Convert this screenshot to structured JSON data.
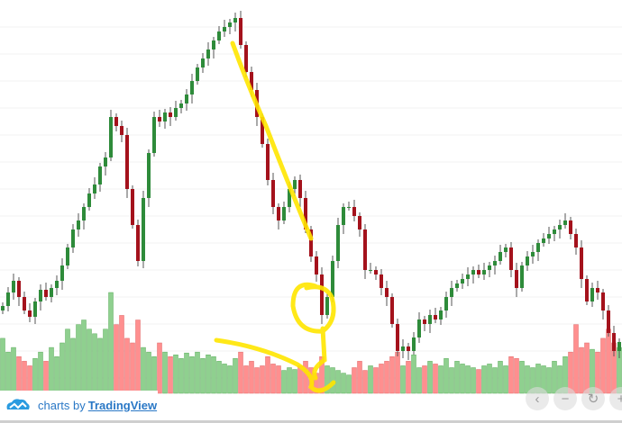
{
  "branding": {
    "prefix": "charts by",
    "link": "TradingView"
  },
  "controls": {
    "scroll_left": "‹",
    "zoom_out": "−",
    "reset": "↻",
    "zoom_in": "+"
  },
  "colors": {
    "up": "#2e8b3a",
    "down": "#a4121c",
    "vol_up": "#8fd08f",
    "vol_down": "#ff8f8f",
    "annotation": "#ffe600"
  },
  "chart_data": {
    "type": "candlestick",
    "title": "",
    "xlabel": "",
    "ylabel": "",
    "ylim": [
      0,
      470
    ],
    "grid": true,
    "closes": [
      130,
      145,
      158,
      140,
      125,
      118,
      135,
      148,
      140,
      150,
      158,
      175,
      195,
      215,
      225,
      240,
      255,
      265,
      285,
      295,
      340,
      330,
      320,
      260,
      220,
      180,
      250,
      300,
      340,
      335,
      345,
      340,
      350,
      355,
      365,
      380,
      395,
      405,
      415,
      425,
      435,
      440,
      445,
      450,
      420,
      390,
      370,
      340,
      310,
      270,
      240,
      225,
      240,
      260,
      270,
      250,
      215,
      185,
      165,
      120,
      140,
      180,
      220,
      240,
      240,
      230,
      215,
      170,
      170,
      165,
      150,
      140,
      110,
      80,
      85,
      80,
      95,
      115,
      110,
      120,
      115,
      125,
      140,
      150,
      155,
      160,
      165,
      170,
      165,
      170,
      175,
      180,
      190,
      195,
      170,
      150,
      175,
      185,
      190,
      200,
      205,
      210,
      215,
      220,
      225,
      210,
      195,
      160,
      135,
      150,
      145,
      125,
      100,
      80,
      90
    ],
    "volumes": [
      60,
      45,
      50,
      40,
      35,
      30,
      38,
      45,
      35,
      50,
      40,
      55,
      70,
      60,
      75,
      80,
      70,
      65,
      60,
      70,
      110,
      75,
      85,
      60,
      55,
      80,
      50,
      45,
      40,
      55,
      45,
      40,
      42,
      38,
      44,
      40,
      45,
      38,
      42,
      40,
      35,
      32,
      30,
      38,
      45,
      30,
      35,
      28,
      30,
      40,
      32,
      30,
      25,
      28,
      26,
      30,
      35,
      28,
      22,
      40,
      30,
      28,
      25,
      22,
      20,
      28,
      35,
      25,
      30,
      28,
      32,
      35,
      40,
      45,
      30,
      35,
      42,
      28,
      30,
      35,
      32,
      30,
      38,
      28,
      35,
      32,
      30,
      28,
      26,
      30,
      32,
      28,
      35,
      30,
      40,
      38,
      35,
      30,
      28,
      32,
      30,
      28,
      35,
      30,
      40,
      45,
      75,
      50,
      55,
      48,
      45,
      60,
      70,
      55,
      50
    ]
  }
}
